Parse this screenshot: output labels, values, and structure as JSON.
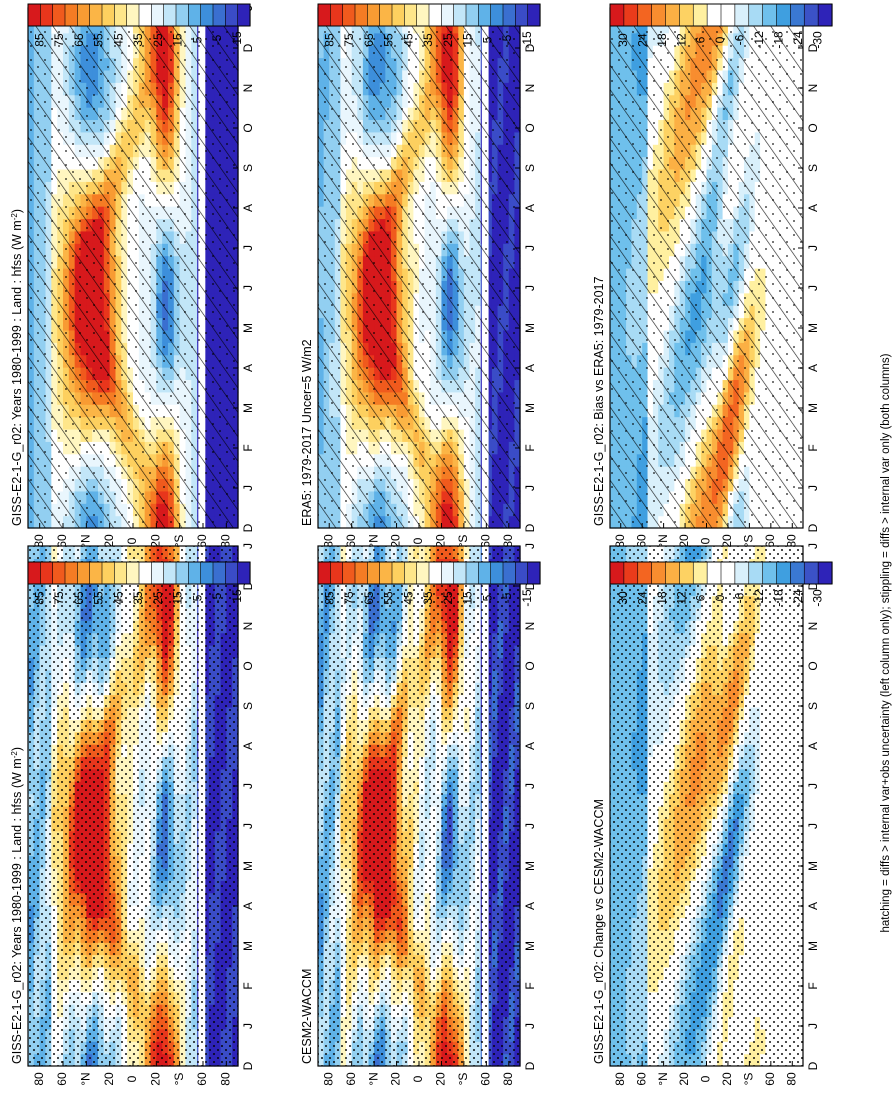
{
  "caption": "hatching = diffs > internal var+obs uncertainty (left column only); stippling = diffs > internal var only (both columns)",
  "colors": {
    "abs_scale": [
      "#d7191c",
      "#e8361c",
      "#f05a1d",
      "#f57c24",
      "#f89b33",
      "#fbb546",
      "#fdd05f",
      "#fee68a",
      "#fff6c0",
      "#ffffff",
      "#e9f6fd",
      "#c2e6f8",
      "#92cff1",
      "#5fb2e8",
      "#3d8fdb",
      "#3a6fd0",
      "#3a4cc7",
      "#2e23b8"
    ],
    "diff_scale": [
      "#d7191c",
      "#ea3b1b",
      "#f36521",
      "#f88d2f",
      "#fbb044",
      "#fdd263",
      "#fff0a0",
      "#ffffff",
      "#ffffff",
      "#d9f0fb",
      "#a8dbf5",
      "#6fc0ec",
      "#3f9fe0",
      "#3a78d2",
      "#3b52c7",
      "#2e23b8"
    ],
    "missing": "#ffffff"
  },
  "panels": [
    {
      "title": "GISS-E2-1-G_r02: Years 1980-1999 : Land : hfss (W m",
      "unit_sup": "-2",
      "title_end": ")",
      "kind": "abs",
      "hatch": true,
      "stipple": "some"
    },
    {
      "title": "ERA5: 1979-2017 Uncer=5 W/m2",
      "unit_sup": "",
      "title_end": "",
      "kind": "abs",
      "hatch": true,
      "stipple": "some"
    },
    {
      "title": "GISS-E2-1-G_r02: Bias vs ERA5: 1979-2017",
      "unit_sup": "",
      "title_end": "",
      "kind": "diff",
      "hatch": true,
      "stipple": "some"
    },
    {
      "title": "GISS-E2-1-G_r02: Years 1980-1999 : Land : hfss (W m",
      "unit_sup": "-2",
      "title_end": ")",
      "kind": "abs",
      "hatch": false,
      "stipple": "dense"
    },
    {
      "title": "CESM2-WACCM",
      "unit_sup": "",
      "title_end": "",
      "kind": "abs",
      "hatch": false,
      "stipple": "dense"
    },
    {
      "title": "GISS-E2-1-G_r02: Change vs CESM2-WACCM",
      "unit_sup": "",
      "title_end": "",
      "kind": "diff",
      "hatch": false,
      "stipple": "dense"
    }
  ],
  "chart_data": {
    "type": "heatmap",
    "xaxis": {
      "label": "",
      "ticks": [
        "D",
        "J",
        "F",
        "M",
        "A",
        "M",
        "J",
        "J",
        "A",
        "S",
        "O",
        "N",
        "D",
        "J"
      ]
    },
    "yaxis": {
      "label_n": "°N",
      "label_s": "°S",
      "ticks_top": [
        "80",
        "60",
        "",
        "20",
        "0"
      ],
      "ticks_bottom": [
        "20",
        "",
        "60",
        "80"
      ]
    },
    "abs_colorbar": {
      "ticks": [
        "85",
        "75",
        "65",
        "55",
        "45",
        "35",
        "25",
        "15",
        "5",
        "-5",
        "-15"
      ],
      "range": [
        -20,
        90
      ]
    },
    "diff_colorbar": {
      "ticks": [
        "30",
        "24",
        "18",
        "12",
        "6",
        "0",
        "-6",
        "-12",
        "-18",
        "-24",
        "-30"
      ],
      "range": [
        -33,
        33
      ]
    },
    "grid": false,
    "layout": "2 columns x 3 rows, rotated 90° counter-clockwise"
  }
}
